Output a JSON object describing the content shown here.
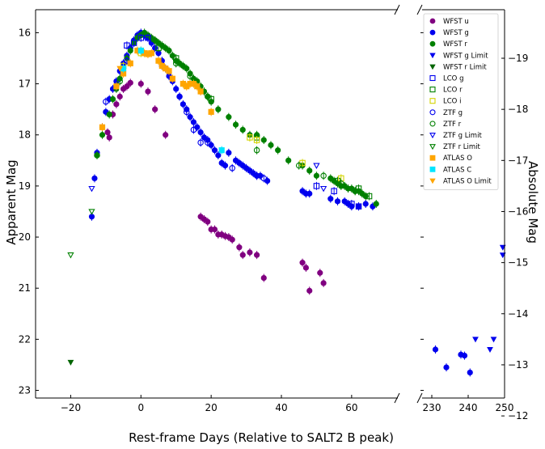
{
  "chart_data": {
    "type": "scatter",
    "xlabel": "Rest-frame Days (Relative to SALT2 B peak)",
    "ylabel": "Apparent Mag",
    "ylabel_right": "Absolute Mag",
    "xlim_main": [
      -30,
      75
    ],
    "xlim_inset": [
      226,
      250
    ],
    "ylim": [
      23.15,
      15.55
    ],
    "abs_offset": 35.5,
    "x_ticks_main": [
      "−20",
      "0",
      "20",
      "40",
      "60"
    ],
    "x_ticks_inset": [
      "230",
      "240",
      "250"
    ],
    "y_ticks": [
      "16",
      "17",
      "18",
      "19",
      "20",
      "21",
      "22",
      "23"
    ],
    "y_ticks_right": [
      "−19",
      "−18",
      "−17",
      "−16",
      "−15",
      "−14",
      "−13",
      "−12"
    ],
    "legend_position": "top-right",
    "legend": [
      "WFST u",
      "WFST g",
      "WFST r",
      "WFST g Limit",
      "WFST r Limit",
      "LCO g",
      "LCO r",
      "LCO i",
      "ZTF g",
      "ZTF r",
      "ZTF g Limit",
      "ZTF r Limit",
      "ATLAS O",
      "ATLAS C",
      "ATLAS O Limit"
    ],
    "series": [
      {
        "name": "WFST u",
        "color": "#800080",
        "marker": "circle-filled",
        "points": [
          [
            -9.5,
            17.95
          ],
          [
            -9,
            18.05
          ],
          [
            -8,
            17.6
          ],
          [
            -7,
            17.4
          ],
          [
            -6,
            17.25
          ],
          [
            -5,
            17.1
          ],
          [
            -4,
            17.05
          ],
          [
            -3,
            16.98
          ],
          [
            0,
            17.0
          ],
          [
            2,
            17.15
          ],
          [
            4,
            17.5
          ],
          [
            7,
            18.0
          ],
          [
            17,
            19.6
          ],
          [
            18,
            19.65
          ],
          [
            19,
            19.7
          ],
          [
            20,
            19.85
          ],
          [
            21,
            19.85
          ],
          [
            22,
            19.95
          ],
          [
            23,
            19.95
          ],
          [
            24,
            19.98
          ],
          [
            25,
            20.0
          ],
          [
            26,
            20.05
          ],
          [
            28,
            20.2
          ],
          [
            29,
            20.35
          ],
          [
            31,
            20.3
          ],
          [
            33,
            20.35
          ],
          [
            35,
            20.8
          ],
          [
            46,
            20.5
          ],
          [
            47,
            20.6
          ],
          [
            48,
            21.05
          ],
          [
            51,
            20.7
          ],
          [
            52,
            20.9
          ]
        ]
      },
      {
        "name": "WFST g",
        "color": "#0000ee",
        "marker": "circle-filled",
        "points": [
          [
            -14,
            19.6
          ],
          [
            -13.2,
            18.85
          ],
          [
            -12.5,
            18.35
          ],
          [
            -11,
            17.85
          ],
          [
            -10,
            17.55
          ],
          [
            -9,
            17.3
          ],
          [
            -8,
            17.1
          ],
          [
            -7,
            16.95
          ],
          [
            -6,
            16.75
          ],
          [
            -5,
            16.6
          ],
          [
            -4,
            16.45
          ],
          [
            -3,
            16.3
          ],
          [
            -2,
            16.15
          ],
          [
            -1,
            16.05
          ],
          [
            0,
            16.0
          ],
          [
            1,
            16.05
          ],
          [
            2,
            16.1
          ],
          [
            3,
            16.2
          ],
          [
            4,
            16.3
          ],
          [
            5,
            16.4
          ],
          [
            6,
            16.55
          ],
          [
            7,
            16.7
          ],
          [
            8,
            16.85
          ],
          [
            9,
            16.95
          ],
          [
            10,
            17.1
          ],
          [
            11,
            17.25
          ],
          [
            12,
            17.4
          ],
          [
            13,
            17.5
          ],
          [
            14,
            17.65
          ],
          [
            15,
            17.75
          ],
          [
            16,
            17.85
          ],
          [
            17,
            17.95
          ],
          [
            18,
            18.05
          ],
          [
            19,
            18.1
          ],
          [
            20,
            18.2
          ],
          [
            21,
            18.3
          ],
          [
            22,
            18.4
          ],
          [
            23,
            18.55
          ],
          [
            24,
            18.6
          ],
          [
            25,
            18.35
          ],
          [
            27,
            18.5
          ],
          [
            28,
            18.55
          ],
          [
            29,
            18.6
          ],
          [
            30,
            18.65
          ],
          [
            31,
            18.7
          ],
          [
            32,
            18.75
          ],
          [
            33,
            18.8
          ],
          [
            34,
            18.8
          ],
          [
            36,
            18.9
          ],
          [
            46,
            19.1
          ],
          [
            47,
            19.15
          ],
          [
            48,
            19.15
          ],
          [
            54,
            19.25
          ],
          [
            56,
            19.3
          ],
          [
            58,
            19.3
          ],
          [
            59,
            19.35
          ],
          [
            60,
            19.4
          ],
          [
            62,
            19.4
          ],
          [
            64,
            19.35
          ],
          [
            66,
            19.4
          ],
          [
            231,
            22.2
          ],
          [
            234,
            22.55
          ],
          [
            238,
            22.3
          ],
          [
            239,
            22.32
          ],
          [
            240.5,
            22.65
          ]
        ]
      },
      {
        "name": "WFST r",
        "color": "#008000",
        "marker": "circle-filled",
        "points": [
          [
            -12.5,
            18.4
          ],
          [
            -11,
            18.0
          ],
          [
            -9,
            17.6
          ],
          [
            -8,
            17.3
          ],
          [
            -7,
            17.1
          ],
          [
            -6,
            16.9
          ],
          [
            -5,
            16.7
          ],
          [
            -4,
            16.5
          ],
          [
            -3,
            16.35
          ],
          [
            -2,
            16.2
          ],
          [
            -1,
            16.1
          ],
          [
            0,
            16.05
          ],
          [
            1,
            16.0
          ],
          [
            2,
            16.05
          ],
          [
            3,
            16.1
          ],
          [
            4,
            16.15
          ],
          [
            5,
            16.2
          ],
          [
            6,
            16.25
          ],
          [
            7,
            16.3
          ],
          [
            8,
            16.35
          ],
          [
            9,
            16.45
          ],
          [
            10,
            16.55
          ],
          [
            11,
            16.6
          ],
          [
            12,
            16.65
          ],
          [
            13,
            16.7
          ],
          [
            14,
            16.8
          ],
          [
            15,
            16.9
          ],
          [
            16,
            16.95
          ],
          [
            17,
            17.05
          ],
          [
            18,
            17.15
          ],
          [
            19,
            17.25
          ],
          [
            20,
            17.35
          ],
          [
            22,
            17.5
          ],
          [
            25,
            17.65
          ],
          [
            27,
            17.8
          ],
          [
            29,
            17.9
          ],
          [
            31,
            18.0
          ],
          [
            33,
            18.0
          ],
          [
            35,
            18.1
          ],
          [
            37,
            18.2
          ],
          [
            39,
            18.3
          ],
          [
            42,
            18.5
          ],
          [
            46,
            18.6
          ],
          [
            48,
            18.7
          ],
          [
            50,
            18.8
          ],
          [
            54,
            18.85
          ],
          [
            55,
            18.9
          ],
          [
            56,
            18.95
          ],
          [
            57,
            19.0
          ],
          [
            58,
            19.0
          ],
          [
            59,
            19.05
          ],
          [
            60,
            19.05
          ],
          [
            61,
            19.1
          ],
          [
            62,
            19.1
          ],
          [
            63,
            19.15
          ],
          [
            64,
            19.2
          ],
          [
            67,
            19.35
          ]
        ]
      },
      {
        "name": "WFST g Limit",
        "color": "#0000ee",
        "marker": "triangle-down-filled",
        "points": [
          [
            242,
            22.0
          ],
          [
            246,
            22.2
          ],
          [
            247,
            22.0
          ],
          [
            249.5,
            20.2
          ],
          [
            249.5,
            20.35
          ]
        ]
      },
      {
        "name": "WFST r Limit",
        "color": "#006400",
        "marker": "triangle-down-filled",
        "points": [
          [
            -20,
            22.45
          ]
        ]
      },
      {
        "name": "LCO g",
        "color": "#0000ee",
        "marker": "square-open",
        "points": [
          [
            -4,
            16.25
          ],
          [
            -2,
            16.2
          ],
          [
            0,
            16.1
          ],
          [
            2,
            16.1
          ],
          [
            50,
            19.0
          ],
          [
            55,
            19.1
          ],
          [
            60,
            19.35
          ],
          [
            62,
            19.4
          ]
        ]
      },
      {
        "name": "LCO r",
        "color": "#008000",
        "marker": "square-open",
        "points": [
          [
            5,
            16.3
          ],
          [
            10,
            16.5
          ],
          [
            20,
            17.3
          ],
          [
            33,
            18.05
          ],
          [
            56,
            18.9
          ],
          [
            62,
            19.05
          ],
          [
            65,
            19.2
          ]
        ]
      },
      {
        "name": "LCO i",
        "color": "#d4d400",
        "marker": "square-open",
        "points": [
          [
            -5,
            16.65
          ],
          [
            0,
            16.4
          ],
          [
            31,
            18.05
          ],
          [
            33,
            18.1
          ],
          [
            46,
            18.55
          ],
          [
            57,
            18.85
          ]
        ]
      },
      {
        "name": "ZTF g",
        "color": "#0000ee",
        "marker": "circle-open",
        "points": [
          [
            -10,
            17.35
          ],
          [
            -7,
            17.05
          ],
          [
            -4,
            16.55
          ],
          [
            6,
            16.65
          ],
          [
            11,
            17.25
          ],
          [
            13,
            17.55
          ],
          [
            15,
            17.9
          ],
          [
            17,
            18.15
          ],
          [
            19,
            18.15
          ],
          [
            26,
            18.65
          ],
          [
            33,
            18.8
          ],
          [
            35,
            18.85
          ]
        ]
      },
      {
        "name": "ZTF r",
        "color": "#008000",
        "marker": "circle-open",
        "points": [
          [
            -12.5,
            18.4
          ],
          [
            -6,
            16.95
          ],
          [
            4,
            16.15
          ],
          [
            10,
            16.6
          ],
          [
            14,
            16.85
          ],
          [
            19,
            17.25
          ],
          [
            33,
            18.3
          ],
          [
            45,
            18.6
          ],
          [
            52,
            18.8
          ],
          [
            57,
            18.95
          ],
          [
            61,
            19.1
          ]
        ]
      },
      {
        "name": "ZTF g Limit",
        "color": "#0000ee",
        "marker": "triangle-down-open",
        "points": [
          [
            -14,
            19.05
          ],
          [
            50,
            18.6
          ],
          [
            52,
            19.05
          ]
        ]
      },
      {
        "name": "ZTF r Limit",
        "color": "#008000",
        "marker": "triangle-down-open",
        "points": [
          [
            -20,
            20.35
          ],
          [
            -14,
            19.5
          ]
        ]
      },
      {
        "name": "ATLAS O",
        "color": "#ffa500",
        "marker": "square-filled",
        "points": [
          [
            -11,
            17.85
          ],
          [
            -7,
            17.05
          ],
          [
            -5,
            16.8
          ],
          [
            -3,
            16.6
          ],
          [
            -1,
            16.35
          ],
          [
            0,
            16.35
          ],
          [
            1,
            16.4
          ],
          [
            2,
            16.42
          ],
          [
            3,
            16.4
          ],
          [
            5,
            16.55
          ],
          [
            6,
            16.65
          ],
          [
            7,
            16.7
          ],
          [
            8,
            16.75
          ],
          [
            9,
            16.9
          ],
          [
            12,
            17.0
          ],
          [
            13,
            17.05
          ],
          [
            14,
            17.0
          ],
          [
            15,
            17.0
          ],
          [
            16,
            17.05
          ],
          [
            17,
            17.15
          ],
          [
            20,
            17.55
          ]
        ]
      },
      {
        "name": "ATLAS C",
        "color": "#00e5ff",
        "marker": "square-filled",
        "points": [
          [
            -5,
            16.7
          ],
          [
            0,
            16.35
          ],
          [
            23,
            18.3
          ]
        ]
      },
      {
        "name": "ATLAS O Limit",
        "color": "#ffa500",
        "marker": "triangle-down-filled",
        "points": [
          [
            -6,
            16.7
          ]
        ]
      }
    ]
  }
}
